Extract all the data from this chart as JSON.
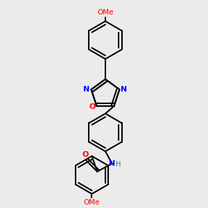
{
  "background_color": "#ebebeb",
  "bond_color": "#000000",
  "N_color": "#0000ff",
  "O_color": "#ff0000",
  "H_color": "#008b8b",
  "line_width": 1.5,
  "figsize": [
    3.0,
    3.0
  ],
  "dpi": 100,
  "top_ome_label": "OMe",
  "bot_ome_label": "OMe",
  "N_label": "N",
  "O_label": "O",
  "NH_label": "NH"
}
